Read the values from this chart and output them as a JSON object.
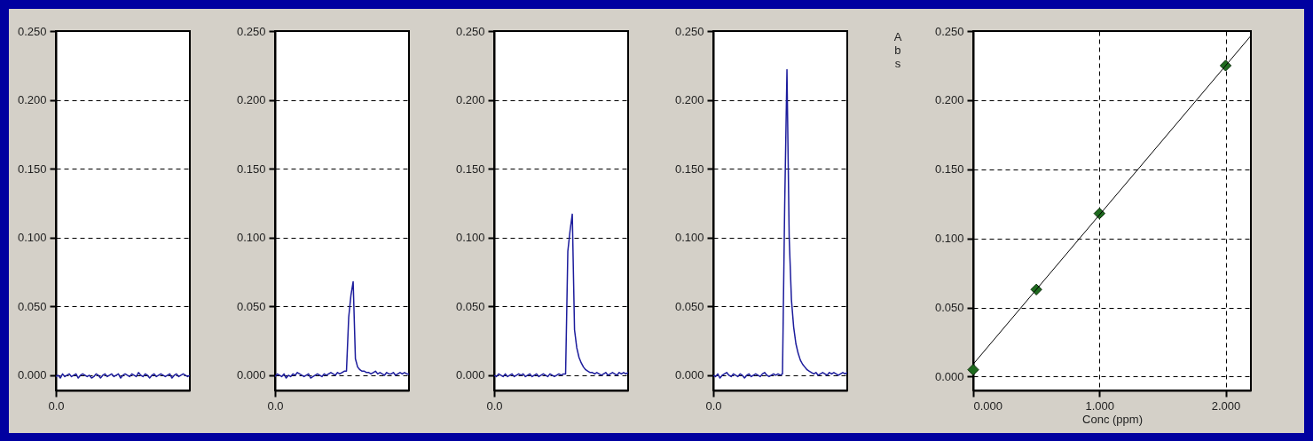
{
  "chart_data": [
    {
      "type": "line",
      "categories": [
        "0.0",
        null,
        null,
        null,
        null,
        null,
        null,
        null,
        null,
        null,
        null,
        null,
        null,
        null,
        null,
        null,
        null,
        null,
        null,
        null,
        null,
        null,
        null,
        null,
        null,
        null,
        null,
        null,
        null,
        null,
        null,
        null,
        null,
        null,
        null,
        null,
        null,
        null,
        null,
        null,
        null,
        null,
        null,
        null,
        null,
        null,
        null,
        null,
        null,
        null,
        null,
        null,
        null,
        null,
        null,
        null,
        null,
        null,
        null,
        null,
        null
      ],
      "ylim": [
        -0.011,
        0.25
      ],
      "yticks": [
        {
          "value": 0,
          "label": "0.000"
        },
        {
          "value": 0.05,
          "label": "0.050"
        },
        {
          "value": 0.1,
          "label": "0.100"
        },
        {
          "value": 0.15,
          "label": "0.150"
        },
        {
          "value": 0.2,
          "label": "0.200"
        },
        {
          "value": 0.25,
          "label": "0.250"
        }
      ],
      "grid": "y",
      "series": [
        {
          "color": "#1c1c9c",
          "values": [
            -0.001,
            0.0,
            -0.002,
            0.001,
            -0.001,
            0.0,
            0.001,
            -0.001,
            0.0,
            0.001,
            -0.002,
            0.0,
            0.001,
            0.0,
            -0.001,
            0.0,
            -0.002,
            -0.001,
            0.001,
            0.0,
            -0.002,
            0.0,
            0.001,
            -0.001,
            0.0,
            0.001,
            -0.001,
            0.0,
            0.001,
            -0.002,
            0.0,
            0.001,
            0.0,
            -0.001,
            0.001,
            0.0,
            -0.001,
            0.002,
            0.0,
            -0.001,
            0.001,
            0.0,
            -0.002,
            0.0,
            0.001,
            -0.001,
            0.0,
            0.001,
            0.0,
            -0.001,
            0.0,
            0.001,
            -0.002,
            0.0,
            0.001,
            -0.001,
            0.0,
            0.001,
            0.0,
            -0.001,
            0.0
          ]
        }
      ]
    },
    {
      "type": "line",
      "categories": [
        "0.0",
        null,
        null,
        null,
        null,
        null,
        null,
        null,
        null,
        null,
        null,
        null,
        null,
        null,
        null,
        null,
        null,
        null,
        null,
        null,
        null,
        null,
        null,
        null,
        null,
        null,
        null,
        null,
        null,
        null,
        null,
        null,
        null,
        null,
        null,
        null,
        null,
        null,
        null,
        null,
        null,
        null,
        null,
        null,
        null,
        null,
        null,
        null,
        null,
        null,
        null,
        null,
        null,
        null,
        null,
        null,
        null,
        null,
        null,
        null,
        null
      ],
      "ylim": [
        -0.011,
        0.25
      ],
      "yticks": [
        {
          "value": 0,
          "label": "0.000"
        },
        {
          "value": 0.05,
          "label": "0.050"
        },
        {
          "value": 0.1,
          "label": "0.100"
        },
        {
          "value": 0.15,
          "label": "0.150"
        },
        {
          "value": 0.2,
          "label": "0.200"
        },
        {
          "value": 0.25,
          "label": "0.250"
        }
      ],
      "grid": "y",
      "series": [
        {
          "color": "#1c1c9c",
          "values": [
            -0.001,
            0.001,
            0.0,
            -0.001,
            0.001,
            -0.002,
            0.0,
            -0.001,
            0.001,
            0.0,
            0.002,
            0.001,
            0.0,
            -0.001,
            0.0,
            0.001,
            -0.002,
            -0.001,
            0.0,
            0.001,
            0.0,
            -0.001,
            0.001,
            0.0,
            0.001,
            0.002,
            0.001,
            0.0,
            0.002,
            0.001,
            0.002,
            0.003,
            0.003,
            0.042,
            0.058,
            0.068,
            0.012,
            0.006,
            0.004,
            0.003,
            0.003,
            0.002,
            0.002,
            0.001,
            0.002,
            0.003,
            0.001,
            0.002,
            0.001,
            0.0,
            0.002,
            0.001,
            0.001,
            0.002,
            0.0,
            0.001,
            0.002,
            0.001,
            0.002,
            0.001,
            0.001
          ]
        }
      ]
    },
    {
      "type": "line",
      "categories": [
        "0.0",
        null,
        null,
        null,
        null,
        null,
        null,
        null,
        null,
        null,
        null,
        null,
        null,
        null,
        null,
        null,
        null,
        null,
        null,
        null,
        null,
        null,
        null,
        null,
        null,
        null,
        null,
        null,
        null,
        null,
        null,
        null,
        null,
        null,
        null,
        null,
        null,
        null,
        null,
        null,
        null,
        null,
        null,
        null,
        null,
        null,
        null,
        null,
        null,
        null,
        null,
        null,
        null,
        null,
        null,
        null,
        null,
        null,
        null,
        null,
        null
      ],
      "ylim": [
        -0.011,
        0.25
      ],
      "yticks": [
        {
          "value": 0,
          "label": "0.000"
        },
        {
          "value": 0.05,
          "label": "0.050"
        },
        {
          "value": 0.1,
          "label": "0.100"
        },
        {
          "value": 0.15,
          "label": "0.150"
        },
        {
          "value": 0.2,
          "label": "0.200"
        },
        {
          "value": 0.25,
          "label": "0.250"
        }
      ],
      "grid": "y",
      "series": [
        {
          "color": "#1c1c9c",
          "values": [
            0.0,
            -0.001,
            0.001,
            0.0,
            -0.001,
            0.001,
            -0.001,
            0.0,
            0.001,
            -0.001,
            0.0,
            0.001,
            0.0,
            0.001,
            -0.001,
            0.0,
            0.001,
            -0.001,
            0.0,
            0.001,
            -0.001,
            0.0,
            0.001,
            0.0,
            -0.001,
            0.001,
            0.0,
            -0.001,
            0.0,
            0.001,
            0.0,
            0.001,
            0.001,
            0.09,
            0.105,
            0.117,
            0.033,
            0.02,
            0.013,
            0.009,
            0.006,
            0.004,
            0.003,
            0.002,
            0.002,
            0.001,
            0.002,
            0.001,
            0.0,
            0.001,
            0.002,
            0.0,
            0.001,
            0.002,
            0.001,
            0.0,
            0.002,
            0.001,
            0.002,
            0.001,
            0.002
          ]
        }
      ]
    },
    {
      "type": "line",
      "categories": [
        "0.0",
        null,
        null,
        null,
        null,
        null,
        null,
        null,
        null,
        null,
        null,
        null,
        null,
        null,
        null,
        null,
        null,
        null,
        null,
        null,
        null,
        null,
        null,
        null,
        null,
        null,
        null,
        null,
        null,
        null,
        null,
        null,
        null,
        null,
        null,
        null,
        null,
        null,
        null,
        null,
        null,
        null,
        null,
        null,
        null,
        null,
        null,
        null,
        null,
        null,
        null,
        null,
        null,
        null,
        null,
        null,
        null,
        null,
        null,
        null,
        null
      ],
      "ylim": [
        -0.011,
        0.25
      ],
      "yticks": [
        {
          "value": 0,
          "label": "0.000"
        },
        {
          "value": 0.05,
          "label": "0.050"
        },
        {
          "value": 0.1,
          "label": "0.100"
        },
        {
          "value": 0.15,
          "label": "0.150"
        },
        {
          "value": 0.2,
          "label": "0.200"
        },
        {
          "value": 0.25,
          "label": "0.250"
        }
      ],
      "grid": "y",
      "series": [
        {
          "color": "#1c1c9c",
          "values": [
            0.0,
            -0.001,
            0.001,
            -0.002,
            0.0,
            0.001,
            0.002,
            0.0,
            -0.001,
            0.001,
            0.0,
            -0.001,
            0.001,
            0.0,
            -0.002,
            0.0,
            0.001,
            -0.001,
            0.0,
            0.001,
            0.0,
            -0.001,
            0.001,
            0.002,
            0.0,
            -0.001,
            0.0,
            0.001,
            0.0,
            0.001,
            0.0,
            0.001,
            0.125,
            0.222,
            0.1,
            0.055,
            0.035,
            0.023,
            0.016,
            0.011,
            0.008,
            0.006,
            0.004,
            0.003,
            0.002,
            0.001,
            0.002,
            0.0,
            0.001,
            0.002,
            0.001,
            0.0,
            0.002,
            0.001,
            0.002,
            0.001,
            0.0,
            0.001,
            0.002,
            0.001,
            0.002
          ]
        }
      ]
    },
    {
      "type": "scatter",
      "xlabel": "Conc (ppm)",
      "ylabel": "Abs",
      "xlim": [
        0,
        2.2
      ],
      "xticks": [
        {
          "value": 0,
          "label": "0.000"
        },
        {
          "value": 1,
          "label": "1.000"
        },
        {
          "value": 2,
          "label": "2.000"
        }
      ],
      "ylim": [
        -0.01,
        0.25
      ],
      "yticks": [
        {
          "value": 0,
          "label": "0.000"
        },
        {
          "value": 0.05,
          "label": "0.050"
        },
        {
          "value": 0.1,
          "label": "0.100"
        },
        {
          "value": 0.15,
          "label": "0.150"
        },
        {
          "value": 0.2,
          "label": "0.200"
        },
        {
          "value": 0.25,
          "label": "0.250"
        }
      ],
      "grid": true,
      "marker": "diamond",
      "series": [
        {
          "color": "#1e6b1e",
          "x": [
            0,
            0.5,
            1,
            2
          ],
          "values": [
            0.005,
            0.063,
            0.118,
            0.225
          ]
        },
        {
          "type": "line",
          "marker": "none",
          "color": "#000000",
          "x": [
            0,
            2.2
          ],
          "values": [
            0.009,
            0.2466
          ]
        }
      ]
    }
  ]
}
